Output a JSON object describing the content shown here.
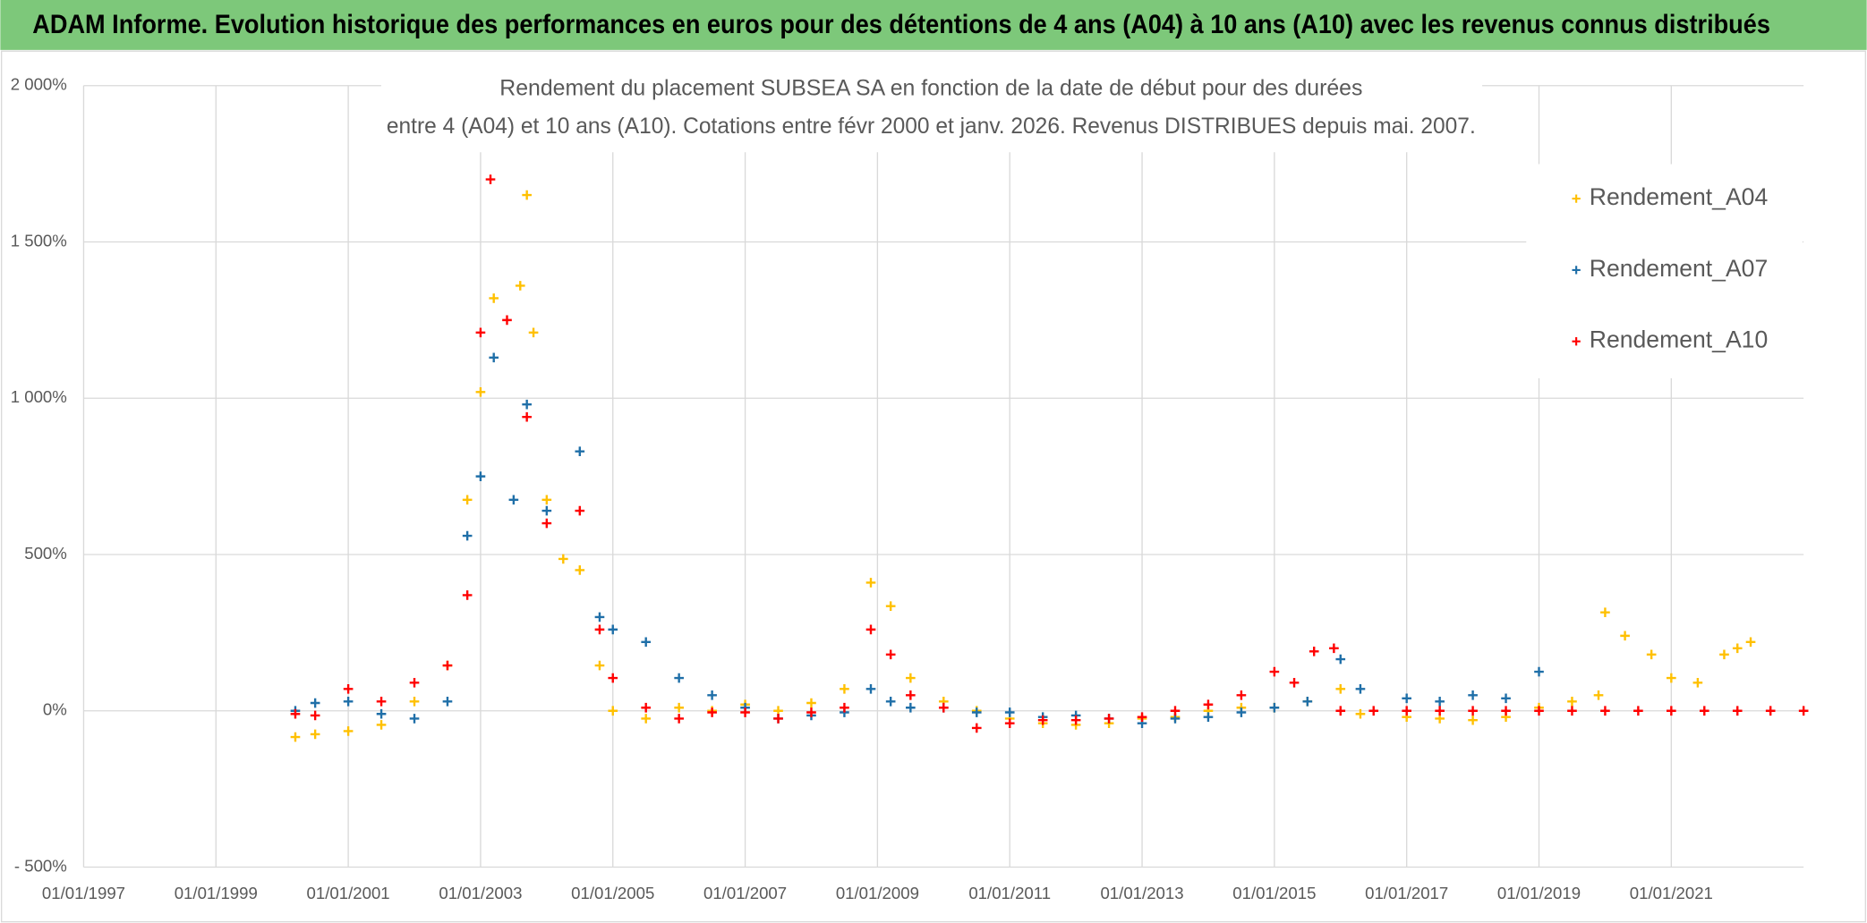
{
  "chart_data": {
    "type": "scatter",
    "banner": "ADAM Informe. Evolution historique des performances en euros pour des détentions de 4 ans (A04) à 10 ans (A10) avec les revenus connus distribués",
    "title": [
      "Rendement du placement SUBSEA SA en fonction de la date de début pour des durées",
      "entre 4 (A04) et 10 ans (A10). Cotations entre févr 2000 et janv. 2026. Revenus DISTRIBUES depuis mai. 2007."
    ],
    "xlim": [
      1997,
      2023
    ],
    "xticks": [
      {
        "value": 1997,
        "label": "01/01/1997"
      },
      {
        "value": 1999,
        "label": "01/01/1999"
      },
      {
        "value": 2001,
        "label": "01/01/2001"
      },
      {
        "value": 2003,
        "label": "01/01/2003"
      },
      {
        "value": 2005,
        "label": "01/01/2005"
      },
      {
        "value": 2007,
        "label": "01/01/2007"
      },
      {
        "value": 2009,
        "label": "01/01/2009"
      },
      {
        "value": 2011,
        "label": "01/01/2011"
      },
      {
        "value": 2013,
        "label": "01/01/2013"
      },
      {
        "value": 2015,
        "label": "01/01/2015"
      },
      {
        "value": 2017,
        "label": "01/01/2017"
      },
      {
        "value": 2019,
        "label": "01/01/2019"
      },
      {
        "value": 2021,
        "label": "01/01/2021"
      }
    ],
    "ylim": [
      -500,
      2000
    ],
    "yticks": [
      {
        "value": -500,
        "label": "- 500%"
      },
      {
        "value": 0,
        "label": "0%"
      },
      {
        "value": 500,
        "label": "500%"
      },
      {
        "value": 1000,
        "label": "1 000%"
      },
      {
        "value": 1500,
        "label": "1 500%"
      },
      {
        "value": 2000,
        "label": "2 000%"
      }
    ],
    "grid": true,
    "legend": "right",
    "series": [
      {
        "name": "Rendement_A04",
        "color": "#ffc000",
        "x": [
          2000.2,
          2000.5,
          2001,
          2001.5,
          2002,
          2002.5,
          2002.8,
          2003,
          2003.2,
          2003.6,
          2003.7,
          2003.8,
          2004,
          2004.25,
          2004.5,
          2004.8,
          2005,
          2005.5,
          2006,
          2006.5,
          2007,
          2007.5,
          2008,
          2008.5,
          2008.9,
          2009.2,
          2009.5,
          2010,
          2010.5,
          2011,
          2011.5,
          2012,
          2012.5,
          2013,
          2013.5,
          2014,
          2014.5,
          2015,
          2015.5,
          2016,
          2016.3,
          2017,
          2017.5,
          2018,
          2018.5,
          2019,
          2019.5,
          2019.9,
          2020,
          2020.3,
          2020.7,
          2021,
          2021.4,
          2021.8,
          2022,
          2022.2
        ],
        "values": [
          -84,
          -75,
          -65,
          -45,
          30,
          145,
          675,
          1020,
          1320,
          1360,
          1650,
          1210,
          675,
          486,
          450,
          145,
          0,
          -25,
          10,
          0,
          20,
          0,
          25,
          70,
          410,
          335,
          105,
          30,
          0,
          -25,
          -40,
          -45,
          -40,
          -25,
          -20,
          0,
          10,
          10,
          30,
          70,
          -10,
          -20,
          -25,
          -30,
          -20,
          10,
          30,
          50,
          315,
          240,
          180,
          105,
          90,
          180,
          200,
          220
        ]
      },
      {
        "name": "Rendement_A07",
        "color": "#1f6fa8",
        "x": [
          2000.2,
          2000.5,
          2001,
          2001.5,
          2002,
          2002.5,
          2002.8,
          2003,
          2003.2,
          2003.5,
          2003.7,
          2004,
          2004.5,
          2004.8,
          2005,
          2005.5,
          2006,
          2006.5,
          2007,
          2007.5,
          2008,
          2008.5,
          2008.9,
          2009.2,
          2009.5,
          2010,
          2010.5,
          2011,
          2011.5,
          2012,
          2012.5,
          2013,
          2013.5,
          2014,
          2014.5,
          2015,
          2015.5,
          2016,
          2016.3,
          2017,
          2017.5,
          2018,
          2018.5,
          2019
        ],
        "values": [
          0,
          25,
          30,
          -10,
          -25,
          30,
          560,
          750,
          1130,
          675,
          980,
          640,
          830,
          300,
          260,
          220,
          105,
          50,
          10,
          -25,
          -15,
          -5,
          70,
          30,
          10,
          10,
          -5,
          -5,
          -20,
          -15,
          -25,
          -40,
          -25,
          -20,
          -5,
          10,
          30,
          165,
          70,
          40,
          30,
          50,
          40,
          125
        ]
      },
      {
        "name": "Rendement_A10",
        "color": "#ff0000",
        "x": [
          2000.2,
          2000.5,
          2001,
          2001.5,
          2002,
          2002.5,
          2002.8,
          2003,
          2003.15,
          2003.4,
          2003.7,
          2004,
          2004.5,
          2004.8,
          2005,
          2005.5,
          2006,
          2006.5,
          2007,
          2007.5,
          2008,
          2008.5,
          2008.9,
          2009.2,
          2009.5,
          2010,
          2010.5,
          2011,
          2011.5,
          2012,
          2012.5,
          2013,
          2013.5,
          2014,
          2014.5,
          2015,
          2015.3,
          2015.6,
          2015.9,
          2016,
          2016.5,
          2017,
          2017.5,
          2018,
          2018.5,
          2019,
          2019.5,
          2020,
          2020.5,
          2021,
          2021.5,
          2022,
          2022.5,
          2023
        ],
        "values": [
          -10,
          -15,
          70,
          30,
          90,
          145,
          370,
          1210,
          1700,
          1250,
          940,
          600,
          640,
          260,
          105,
          10,
          -25,
          -5,
          -5,
          -25,
          -5,
          10,
          260,
          180,
          50,
          10,
          -55,
          -40,
          -30,
          -30,
          -25,
          -20,
          0,
          20,
          50,
          125,
          90,
          190,
          200,
          0,
          0,
          0,
          0,
          0,
          0,
          0,
          0,
          0,
          0,
          0,
          0,
          0,
          0,
          0
        ]
      }
    ]
  }
}
